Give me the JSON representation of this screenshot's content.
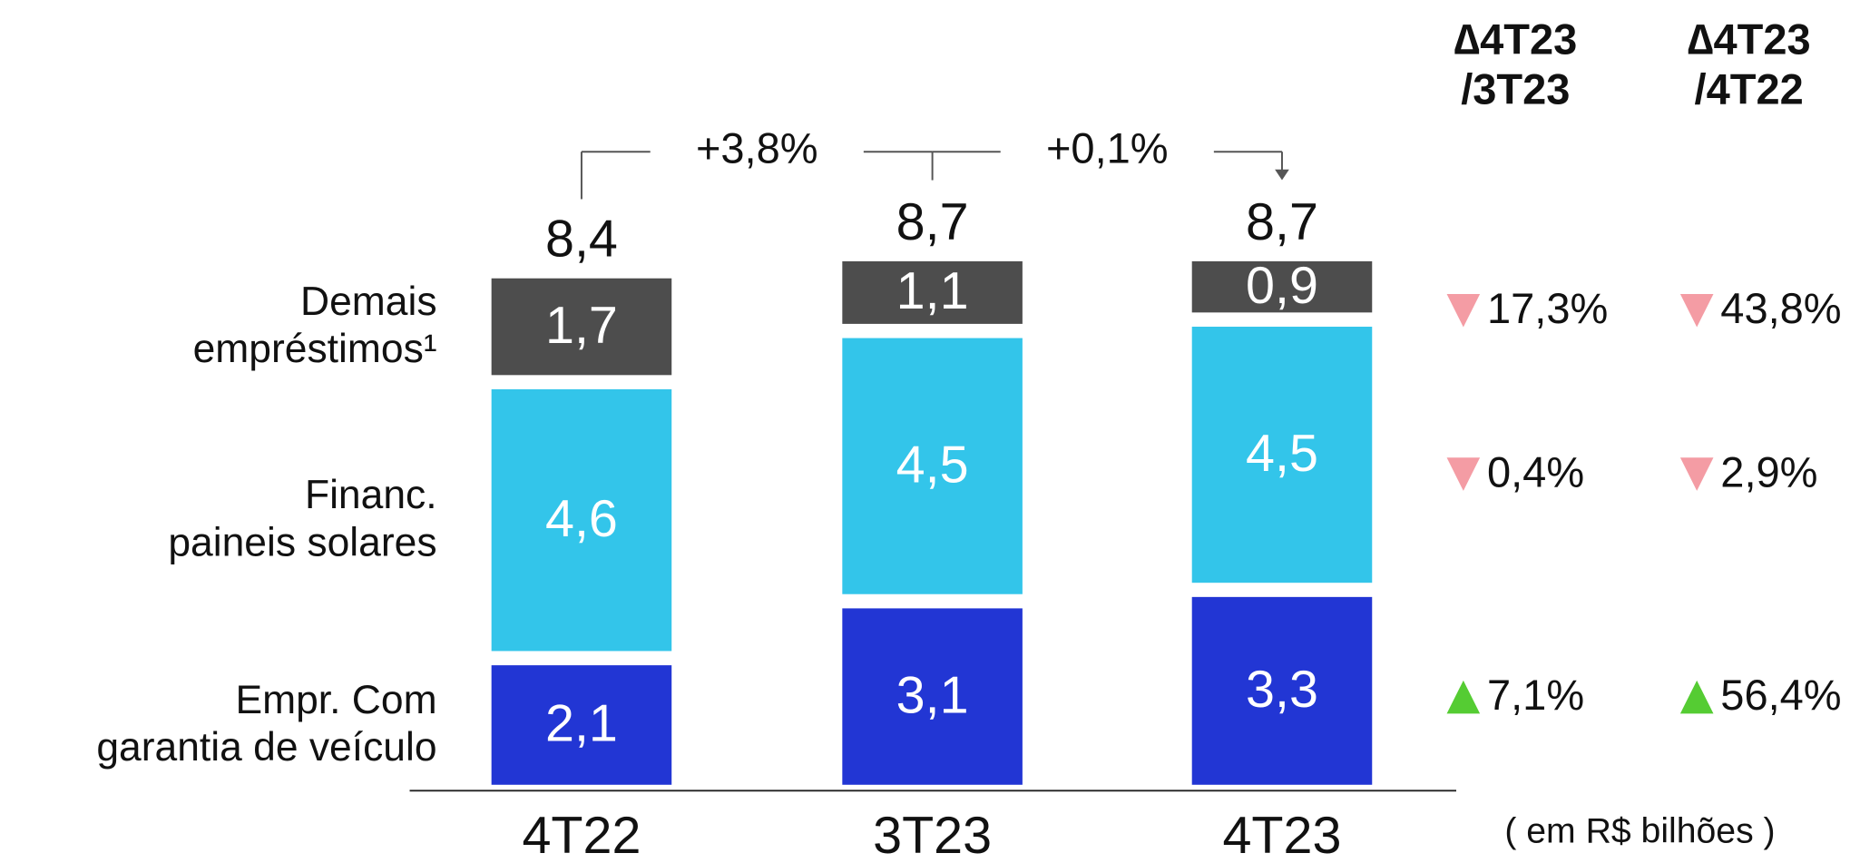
{
  "chart_data": {
    "type": "stacked_bar",
    "categories": [
      "4T22",
      "3T23",
      "4T23"
    ],
    "series": [
      {
        "name": [
          "Empr. Com",
          "garantia de veículo"
        ],
        "color": "#2236d4",
        "values": [
          2.1,
          3.1,
          3.3
        ],
        "value_labels": [
          "2,1",
          "3,1",
          "3,3"
        ]
      },
      {
        "name": [
          "Financ.",
          "paineis solares"
        ],
        "color": "#33c5ea",
        "values": [
          4.6,
          4.5,
          4.5
        ],
        "value_labels": [
          "4,6",
          "4,5",
          "4,5"
        ]
      },
      {
        "name": [
          "Demais",
          "empréstimos¹"
        ],
        "color": "#4d4d4d",
        "values": [
          1.7,
          1.1,
          0.9
        ],
        "value_labels": [
          "1,7",
          "1,1",
          "0,9"
        ]
      }
    ],
    "totals": [
      8.4,
      8.7,
      8.7
    ],
    "total_labels": [
      "8,4",
      "8,7",
      "8,7"
    ],
    "growth": [
      "+3,8%",
      "+0,1%"
    ],
    "deltas": {
      "headers": [
        [
          "∆4T23",
          "/3T23"
        ],
        [
          "∆4T23",
          "/4T22"
        ]
      ],
      "rows": [
        [
          {
            "dir": "up",
            "label": "7,1%"
          },
          {
            "dir": "up",
            "label": "56,4%"
          }
        ],
        [
          {
            "dir": "down",
            "label": "0,4%"
          },
          {
            "dir": "down",
            "label": "2,9%"
          }
        ],
        [
          {
            "dir": "down",
            "label": "17,3%"
          },
          {
            "dir": "down",
            "label": "43,8%"
          }
        ]
      ],
      "colors": {
        "up": "#55cc33",
        "down": "#f49ca4"
      }
    },
    "unit": "( em R$ bilhões )"
  }
}
